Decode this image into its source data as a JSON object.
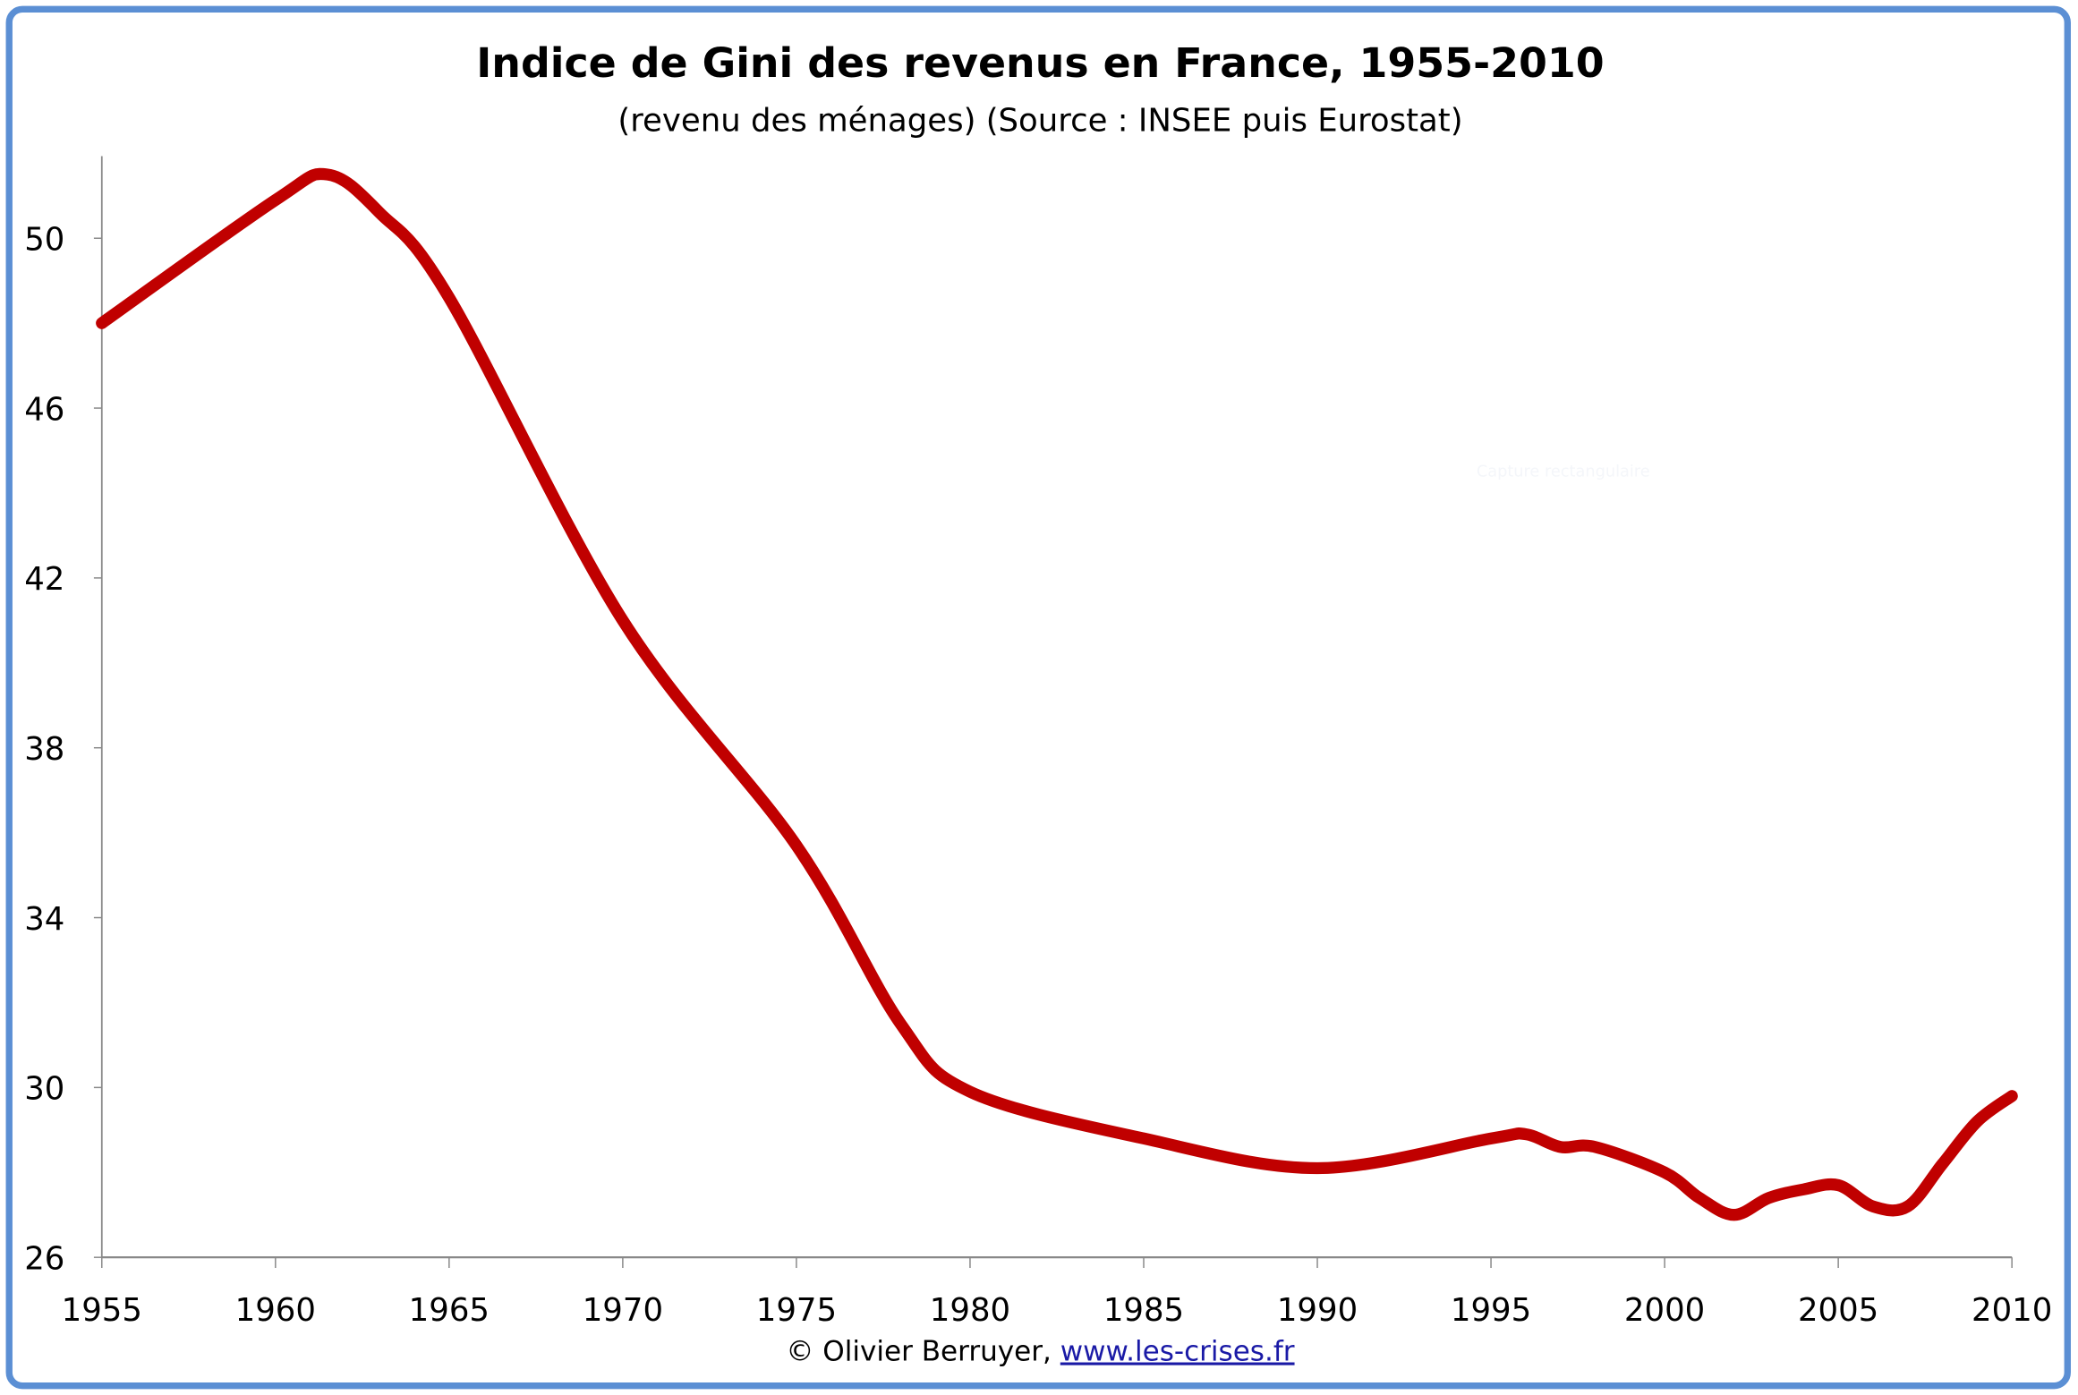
{
  "chart_data": {
    "type": "line",
    "title": "Indice de Gini des revenus en France, 1955-2010",
    "subtitle": "(revenu des ménages) (Source : INSEE puis Eurostat)",
    "xlabel": "",
    "ylabel": "",
    "xlim": [
      1955,
      2010
    ],
    "ylim": [
      26,
      52
    ],
    "x_ticks": [
      "1955",
      "1960",
      "1965",
      "1970",
      "1975",
      "1980",
      "1985",
      "1990",
      "1995",
      "2000",
      "2005",
      "2010"
    ],
    "y_ticks": [
      "26",
      "30",
      "34",
      "38",
      "42",
      "46",
      "50"
    ],
    "grid": false,
    "line_color": "#c00000",
    "series": [
      {
        "x": [
          1955,
          1960,
          1961.5,
          1963,
          1965,
          1970,
          1975,
          1978,
          1980,
          1985,
          1990,
          1995,
          1996,
          1997,
          1998,
          2000,
          2001,
          2002,
          2003,
          2004,
          2005,
          2006,
          2007,
          2008,
          2009,
          2010
        ],
        "values": [
          48.0,
          50.9,
          51.5,
          50.6,
          48.6,
          41.0,
          35.7,
          31.5,
          29.9,
          28.8,
          28.1,
          28.8,
          28.9,
          28.6,
          28.6,
          28.0,
          27.4,
          27.0,
          27.4,
          27.6,
          27.7,
          27.2,
          27.2,
          28.2,
          29.2,
          29.8
        ]
      }
    ],
    "footer_credit": "© Olivier Berruyer, ",
    "footer_link": "www.les-crises.fr",
    "overlay_text": "Capture rectangulaire",
    "frame_color": "#5b8fd4"
  }
}
